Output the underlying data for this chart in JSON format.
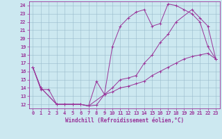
{
  "title": "",
  "xlabel": "Windchill (Refroidissement éolien,°C)",
  "ylabel": "",
  "background_color": "#cce8f0",
  "line_color": "#993399",
  "grid_color": "#99bbcc",
  "xlim": [
    -0.5,
    23.5
  ],
  "ylim": [
    11.5,
    24.5
  ],
  "yticks": [
    12,
    13,
    14,
    15,
    16,
    17,
    18,
    19,
    20,
    21,
    22,
    23,
    24
  ],
  "xticks": [
    0,
    1,
    2,
    3,
    4,
    5,
    6,
    7,
    8,
    9,
    10,
    11,
    12,
    13,
    14,
    15,
    16,
    17,
    18,
    19,
    20,
    21,
    22,
    23
  ],
  "series": [
    {
      "x": [
        0,
        1,
        3,
        4,
        5,
        6,
        7,
        8,
        9,
        10,
        11,
        12,
        13,
        14,
        15,
        16,
        17,
        18,
        19,
        20,
        21,
        22,
        23
      ],
      "y": [
        16.5,
        14.0,
        12.0,
        12.0,
        12.0,
        12.0,
        11.8,
        14.8,
        13.2,
        19.0,
        21.5,
        22.5,
        23.2,
        23.5,
        21.5,
        21.8,
        24.2,
        24.0,
        23.5,
        23.0,
        22.0,
        19.0,
        17.5
      ]
    },
    {
      "x": [
        0,
        1,
        3,
        4,
        5,
        6,
        7,
        9,
        10,
        11,
        12,
        13,
        14,
        15,
        16,
        17,
        18,
        20,
        21,
        22,
        23
      ],
      "y": [
        16.5,
        14.0,
        12.0,
        12.0,
        12.0,
        12.0,
        11.8,
        13.2,
        14.0,
        15.0,
        15.2,
        15.5,
        17.0,
        18.0,
        19.5,
        20.5,
        22.0,
        23.5,
        22.5,
        21.5,
        17.5
      ]
    },
    {
      "x": [
        0,
        1,
        2,
        3,
        4,
        5,
        6,
        7,
        8,
        9,
        10,
        11,
        12,
        13,
        14,
        15,
        16,
        17,
        18,
        19,
        20,
        21,
        22,
        23
      ],
      "y": [
        16.5,
        13.8,
        13.8,
        12.0,
        12.0,
        12.0,
        12.0,
        11.8,
        11.9,
        13.2,
        13.5,
        14.0,
        14.2,
        14.5,
        14.8,
        15.5,
        16.0,
        16.5,
        17.0,
        17.5,
        17.8,
        18.0,
        18.2,
        17.5
      ]
    }
  ],
  "tick_fontsize": 5,
  "xlabel_fontsize": 5.5,
  "linewidth": 0.7,
  "markersize": 2.5,
  "markeredgewidth": 0.7
}
